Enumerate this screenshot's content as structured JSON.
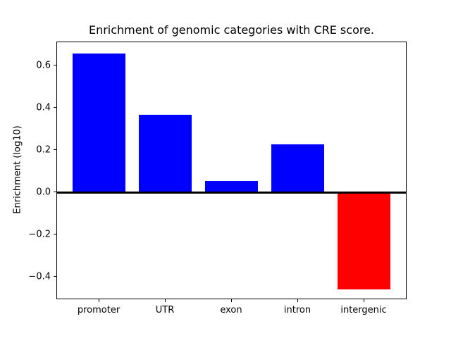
{
  "chart_data": {
    "type": "bar",
    "title": "Enrichment of genomic categories with CRE score.",
    "ylabel": "Enrichment (log10)",
    "xlabel": "",
    "categories": [
      "promoter",
      "UTR",
      "exon",
      "intron",
      "intergenic"
    ],
    "values": [
      0.66,
      0.37,
      0.054,
      0.23,
      -0.458
    ],
    "bar_colors": [
      "#0000ff",
      "#0000ff",
      "#0000ff",
      "#0000ff",
      "#ff0000"
    ],
    "positive_color": "#0000ff",
    "negative_color": "#ff0000",
    "ylim": [
      -0.508,
      0.712
    ],
    "yticks": [
      {
        "value": 0.6,
        "label": "0.6"
      },
      {
        "value": 0.4,
        "label": "0.4"
      },
      {
        "value": 0.2,
        "label": "0.2"
      },
      {
        "value": 0.0,
        "label": "0.0"
      },
      {
        "value": -0.2,
        "label": "−0.2"
      },
      {
        "value": -0.4,
        "label": "−0.4"
      }
    ],
    "zero_line": {
      "show": true,
      "color": "#000000"
    },
    "grid": false,
    "legend": "none",
    "background": "#ffffff"
  }
}
